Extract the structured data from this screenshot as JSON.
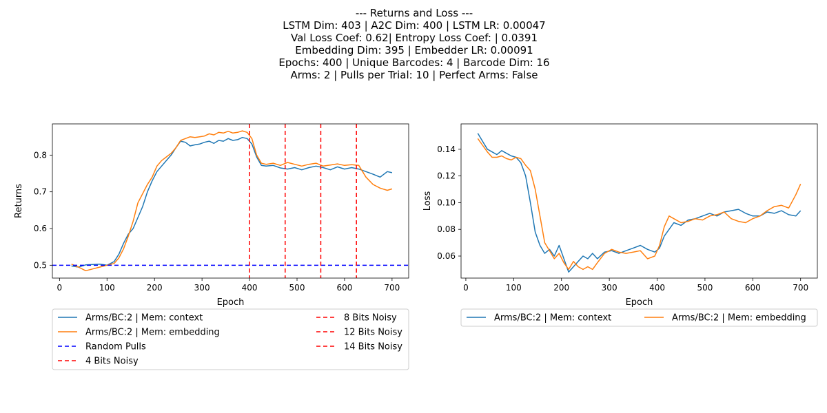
{
  "figure": {
    "title_lines": [
      "--- Returns and Loss ---",
      "LSTM Dim: 403 | A2C Dim: 400 | LSTM LR: 0.00047",
      "Val Loss Coef: 0.62| Entropy Loss Coef: | 0.0391",
      "Embedding Dim: 395 | Embedder LR: 0.00091",
      "Epochs: 400 | Unique Barcodes: 4 | Barcode Dim: 16",
      "Arms: 2 | Pulls per Trial: 10 | Perfect Arms: False"
    ]
  },
  "colors": {
    "context": "#1f77b4",
    "embedding": "#ff7f0e",
    "random": "#0000ff",
    "noisy": "#ff0000"
  },
  "chart_data": [
    {
      "type": "line",
      "xlabel": "Epoch",
      "ylabel": "Returns",
      "xlim": [
        -15,
        735
      ],
      "ylim": [
        0.465,
        0.885
      ],
      "xticks": [
        0,
        100,
        200,
        300,
        400,
        500,
        600,
        700
      ],
      "yticks": [
        0.5,
        0.6,
        0.7,
        0.8
      ],
      "ytick_labels": [
        "0.5",
        "0.6",
        "0.7",
        "0.8"
      ],
      "series": [
        {
          "name": "Arms/BC:2 | Mem: context",
          "color_key": "context",
          "x": [
            25,
            40,
            55,
            70,
            85,
            100,
            115,
            125,
            135,
            145,
            155,
            165,
            175,
            185,
            195,
            205,
            215,
            225,
            235,
            245,
            255,
            265,
            275,
            285,
            295,
            305,
            315,
            325,
            335,
            345,
            355,
            365,
            375,
            385,
            395,
            405,
            415,
            425,
            435,
            450,
            465,
            480,
            495,
            510,
            525,
            540,
            555,
            570,
            585,
            600,
            615,
            630,
            645,
            660,
            675,
            690,
            700
          ],
          "y": [
            0.498,
            0.495,
            0.501,
            0.502,
            0.503,
            0.5,
            0.51,
            0.53,
            0.56,
            0.585,
            0.6,
            0.63,
            0.66,
            0.7,
            0.73,
            0.755,
            0.77,
            0.785,
            0.8,
            0.82,
            0.838,
            0.835,
            0.825,
            0.828,
            0.83,
            0.835,
            0.838,
            0.832,
            0.84,
            0.838,
            0.845,
            0.84,
            0.842,
            0.848,
            0.845,
            0.83,
            0.795,
            0.772,
            0.77,
            0.772,
            0.765,
            0.762,
            0.766,
            0.76,
            0.766,
            0.77,
            0.766,
            0.76,
            0.768,
            0.762,
            0.766,
            0.762,
            0.755,
            0.748,
            0.74,
            0.755,
            0.752
          ]
        },
        {
          "name": "Arms/BC:2 | Mem: embedding",
          "color_key": "embedding",
          "x": [
            25,
            40,
            55,
            70,
            85,
            100,
            115,
            125,
            135,
            145,
            155,
            165,
            175,
            185,
            195,
            205,
            215,
            225,
            235,
            245,
            255,
            265,
            275,
            285,
            295,
            305,
            315,
            325,
            335,
            345,
            355,
            365,
            375,
            385,
            395,
            405,
            415,
            425,
            435,
            450,
            465,
            480,
            495,
            510,
            525,
            540,
            555,
            570,
            585,
            600,
            615,
            630,
            645,
            660,
            675,
            690,
            700
          ],
          "y": [
            0.503,
            0.495,
            0.485,
            0.49,
            0.495,
            0.5,
            0.505,
            0.52,
            0.545,
            0.58,
            0.62,
            0.67,
            0.695,
            0.72,
            0.74,
            0.77,
            0.785,
            0.795,
            0.805,
            0.82,
            0.84,
            0.845,
            0.85,
            0.848,
            0.85,
            0.852,
            0.858,
            0.855,
            0.862,
            0.86,
            0.865,
            0.86,
            0.862,
            0.866,
            0.862,
            0.845,
            0.8,
            0.778,
            0.775,
            0.778,
            0.772,
            0.78,
            0.775,
            0.77,
            0.775,
            0.778,
            0.77,
            0.773,
            0.776,
            0.772,
            0.774,
            0.772,
            0.74,
            0.72,
            0.71,
            0.704,
            0.708
          ]
        }
      ],
      "hlines": [
        {
          "name": "Random Pulls",
          "y": 0.5,
          "color_key": "random"
        }
      ],
      "vlines": [
        {
          "name": "4 Bits Noisy",
          "x": 400,
          "color_key": "noisy"
        },
        {
          "name": "8 Bits Noisy",
          "x": 475,
          "color_key": "noisy"
        },
        {
          "name": "12 Bits Noisy",
          "x": 550,
          "color_key": "noisy"
        },
        {
          "name": "14 Bits Noisy",
          "x": 625,
          "color_key": "noisy"
        }
      ],
      "legend": {
        "placement": "below",
        "ncol": 2,
        "entries": [
          {
            "label": "Arms/BC:2 | Mem: context",
            "color_key": "context",
            "style": "solid"
          },
          {
            "label": "Arms/BC:2 | Mem: embedding",
            "color_key": "embedding",
            "style": "solid"
          },
          {
            "label": "Random Pulls",
            "color_key": "random",
            "style": "dashed"
          },
          {
            "label": "4 Bits Noisy",
            "color_key": "noisy",
            "style": "dashed"
          },
          {
            "label": "8 Bits Noisy",
            "color_key": "noisy",
            "style": "dashed"
          },
          {
            "label": "12 Bits Noisy",
            "color_key": "noisy",
            "style": "dashed"
          },
          {
            "label": "14 Bits Noisy",
            "color_key": "noisy",
            "style": "dashed"
          }
        ]
      }
    },
    {
      "type": "line",
      "xlabel": "Epoch",
      "ylabel": "Loss",
      "xlim": [
        -10,
        735
      ],
      "ylim": [
        0.0435,
        0.159
      ],
      "xticks": [
        0,
        100,
        200,
        300,
        400,
        500,
        600,
        700
      ],
      "yticks": [
        0.06,
        0.08,
        0.1,
        0.12,
        0.14
      ],
      "ytick_labels": [
        "0.06",
        "0.08",
        "0.10",
        "0.12",
        "0.14"
      ],
      "series": [
        {
          "name": "Arms/BC:2 | Mem: context",
          "color_key": "context",
          "x": [
            25,
            35,
            45,
            55,
            65,
            75,
            85,
            95,
            105,
            115,
            125,
            135,
            145,
            155,
            165,
            175,
            185,
            195,
            205,
            215,
            225,
            235,
            245,
            255,
            265,
            275,
            290,
            305,
            320,
            335,
            350,
            365,
            380,
            395,
            405,
            415,
            425,
            435,
            450,
            465,
            480,
            495,
            510,
            525,
            540,
            555,
            570,
            585,
            600,
            615,
            630,
            645,
            660,
            675,
            690,
            700
          ],
          "y": [
            0.152,
            0.146,
            0.14,
            0.138,
            0.136,
            0.139,
            0.137,
            0.135,
            0.134,
            0.13,
            0.12,
            0.1,
            0.078,
            0.068,
            0.062,
            0.065,
            0.06,
            0.068,
            0.058,
            0.048,
            0.052,
            0.056,
            0.06,
            0.058,
            0.062,
            0.058,
            0.063,
            0.064,
            0.062,
            0.064,
            0.066,
            0.068,
            0.065,
            0.063,
            0.066,
            0.075,
            0.08,
            0.085,
            0.083,
            0.087,
            0.088,
            0.09,
            0.092,
            0.09,
            0.093,
            0.094,
            0.095,
            0.092,
            0.09,
            0.09,
            0.093,
            0.092,
            0.094,
            0.091,
            0.09,
            0.094
          ]
        },
        {
          "name": "Arms/BC:2 | Mem: embedding",
          "color_key": "embedding",
          "x": [
            25,
            35,
            45,
            55,
            65,
            75,
            85,
            95,
            105,
            115,
            125,
            135,
            145,
            155,
            165,
            175,
            185,
            195,
            205,
            215,
            225,
            235,
            245,
            255,
            265,
            275,
            290,
            305,
            320,
            335,
            350,
            365,
            380,
            395,
            405,
            415,
            425,
            435,
            450,
            465,
            480,
            495,
            510,
            525,
            540,
            555,
            570,
            585,
            600,
            615,
            630,
            645,
            660,
            675,
            690,
            700
          ],
          "y": [
            0.148,
            0.143,
            0.138,
            0.134,
            0.134,
            0.135,
            0.133,
            0.132,
            0.134,
            0.133,
            0.128,
            0.124,
            0.11,
            0.09,
            0.07,
            0.064,
            0.058,
            0.062,
            0.055,
            0.05,
            0.056,
            0.052,
            0.05,
            0.052,
            0.05,
            0.055,
            0.062,
            0.065,
            0.063,
            0.062,
            0.063,
            0.064,
            0.058,
            0.06,
            0.068,
            0.082,
            0.09,
            0.088,
            0.085,
            0.086,
            0.088,
            0.087,
            0.09,
            0.091,
            0.093,
            0.088,
            0.086,
            0.085,
            0.088,
            0.09,
            0.094,
            0.097,
            0.098,
            0.096,
            0.106,
            0.114
          ]
        }
      ],
      "legend": {
        "placement": "below",
        "ncol": 2,
        "entries": [
          {
            "label": "Arms/BC:2 | Mem: context",
            "color_key": "context",
            "style": "solid"
          },
          {
            "label": "Arms/BC:2 | Mem: embedding",
            "color_key": "embedding",
            "style": "solid"
          }
        ]
      }
    }
  ]
}
